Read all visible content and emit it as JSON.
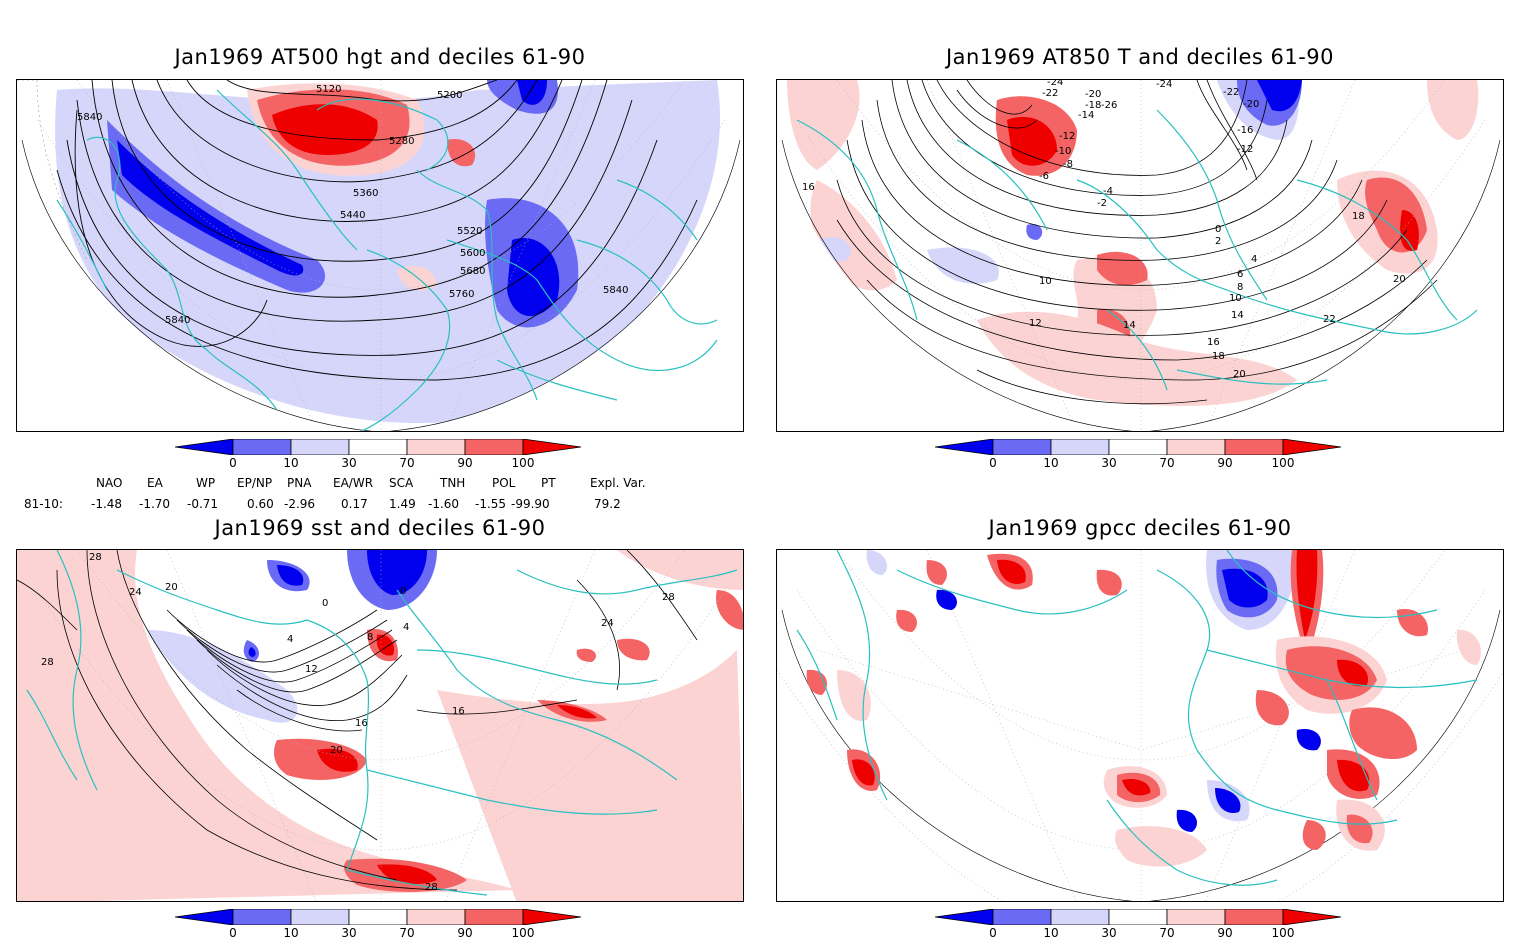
{
  "panels": [
    {
      "title": "Jan1969 AT500 hgt and deciles 61-90",
      "contour_labels": [
        "5120",
        "5200",
        "5280",
        "5360",
        "5440",
        "5520",
        "5600",
        "5680",
        "5760",
        "5840",
        "5840",
        "5840"
      ]
    },
    {
      "title": "Jan1969 AT850 T and deciles 61-90",
      "contour_labels": [
        "-24",
        "-22",
        "-20",
        "-18",
        "-14",
        "-12",
        "-10",
        "-8",
        "-6",
        "-4",
        "-2",
        "0",
        "2",
        "4",
        "6",
        "8",
        "10",
        "10",
        "12",
        "14",
        "14",
        "16",
        "16",
        "18",
        "18",
        "20",
        "20",
        "22",
        "-26",
        "-24",
        "-22",
        "-20",
        "-16",
        "-12"
      ]
    },
    {
      "title": "Jan1969 sst and deciles 61-90",
      "contour_labels": [
        "28",
        "24",
        "20",
        "0",
        "4",
        "8",
        "12",
        "16",
        "16",
        "20",
        "24",
        "28",
        "28",
        "28",
        "0",
        "4"
      ]
    },
    {
      "title": "Jan1969 gpcc deciles 61-90",
      "contour_labels": []
    }
  ],
  "colorbar": {
    "ticks": [
      "0",
      "10",
      "30",
      "70",
      "90",
      "100"
    ],
    "colors": [
      "#0000ee",
      "#6a6af4",
      "#d6d6fb",
      "#ffffff",
      "#fcd3d3",
      "#f46464",
      "#ee0000"
    ]
  },
  "indices": {
    "headers": [
      "NAO",
      "EA",
      "WP",
      "EP/NP",
      "PNA",
      "EA/WR",
      "SCA",
      "TNH",
      "POL",
      "PT",
      "Expl. Var."
    ],
    "row_label": "81-10:",
    "values": [
      "-1.48",
      "-1.70",
      "-0.71",
      "0.60",
      "-2.96",
      "0.17",
      "1.49",
      "-1.60",
      "-1.55",
      "-99.90",
      "79.2"
    ]
  },
  "colors": {
    "coast": "#2ac0c0",
    "contour": "#000000",
    "grid": "#b0b0b0"
  }
}
